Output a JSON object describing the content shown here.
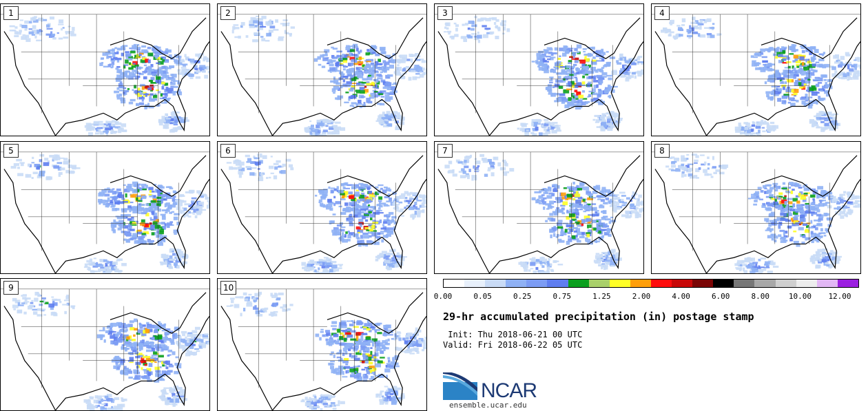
{
  "panels": [
    {
      "label": "1",
      "seed": 11
    },
    {
      "label": "2",
      "seed": 23
    },
    {
      "label": "3",
      "seed": 37
    },
    {
      "label": "4",
      "seed": 41
    },
    {
      "label": "5",
      "seed": 53
    },
    {
      "label": "6",
      "seed": 67
    },
    {
      "label": "7",
      "seed": 71
    },
    {
      "label": "8",
      "seed": 83
    },
    {
      "label": "9",
      "seed": 97
    },
    {
      "label": "10",
      "seed": 101
    }
  ],
  "colorbar": {
    "colors": [
      "#ffffff",
      "#e8f0fb",
      "#c9dbf6",
      "#8fb1f5",
      "#7c9cf4",
      "#5f7ef0",
      "#0a9f1e",
      "#a9d06a",
      "#ffff26",
      "#ff9f0a",
      "#ff0d0d",
      "#c80808",
      "#7a0505",
      "#000000",
      "#777777",
      "#a8a8a8",
      "#cfcfcf",
      "#ededed",
      "#e2b7f5",
      "#9b1fe0"
    ],
    "tick_labels": [
      "0.00",
      "0.05",
      "0.25",
      "0.75",
      "1.25",
      "2.00",
      "4.00",
      "6.00",
      "8.00",
      "10.00",
      "12.00"
    ]
  },
  "title": "29-hr accumulated precipitation (in) postage stamp",
  "init_text": " Init: Thu 2018-06-21 00 UTC",
  "valid_text": "Valid: Fri 2018-06-22 05 UTC",
  "logo": {
    "text": "NCAR",
    "colors": [
      "#1d3a74",
      "#2b83c6"
    ]
  },
  "site": "ensemble.ucar.edu"
}
